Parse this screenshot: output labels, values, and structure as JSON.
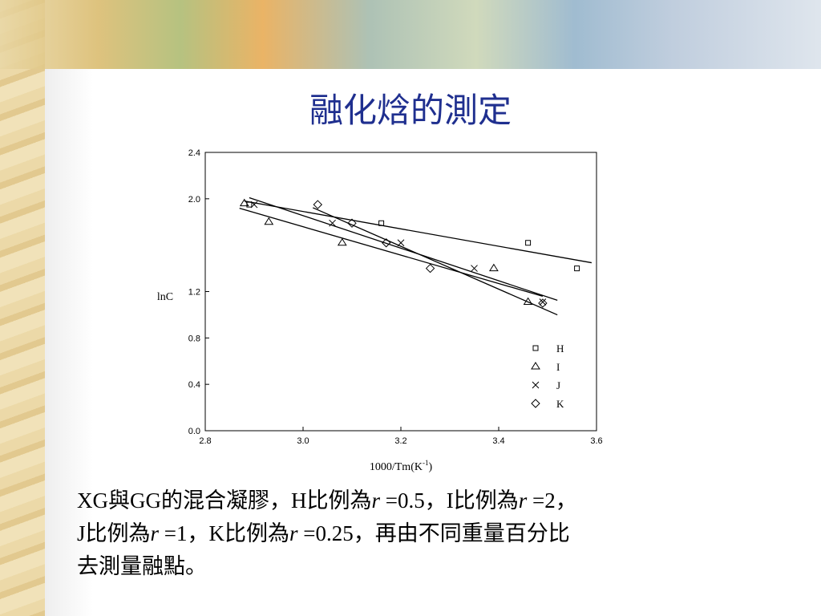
{
  "title": "融化焓的測定",
  "chart_data": {
    "type": "scatter",
    "y_label": "lnC",
    "x_label": {
      "main": "1000/Tm(K",
      "sup": "-1",
      "end": ")"
    },
    "xlim": [
      2.8,
      3.6
    ],
    "xticks": [
      2.8,
      {
        "value": 3,
        "label": "3.0"
      },
      3.2,
      3.4,
      3.6
    ],
    "ylim": [
      0,
      2.4
    ],
    "yticks": [
      {
        "value": 0,
        "label": "0.0"
      },
      0.4,
      0.8,
      1.2,
      {
        "value": 2,
        "label": "2.0"
      },
      2.4
    ],
    "fit_lines": true,
    "legend": "lower right",
    "series": [
      {
        "name": "H",
        "marker": "square",
        "color": "#000000",
        "x": [
          2.89,
          3.16,
          3.46,
          3.56
        ],
        "values": [
          1.95,
          1.79,
          1.62,
          1.4
        ]
      },
      {
        "name": "I",
        "marker": "triangle",
        "color": "#000000",
        "x": [
          2.88,
          2.93,
          3.08,
          3.39,
          3.46
        ],
        "values": [
          1.96,
          1.8,
          1.62,
          1.4,
          1.11
        ]
      },
      {
        "name": "J",
        "marker": "cross",
        "color": "#000000",
        "x": [
          2.9,
          3.06,
          3.2,
          3.35,
          3.49
        ],
        "values": [
          1.95,
          1.79,
          1.62,
          1.4,
          1.11
        ]
      },
      {
        "name": "K",
        "marker": "diamond",
        "color": "#000000",
        "x": [
          3.03,
          3.1,
          3.17,
          3.26,
          3.49
        ],
        "values": [
          1.95,
          1.79,
          1.62,
          1.4,
          1.1
        ]
      }
    ]
  },
  "body": {
    "lines": [
      [
        {
          "text": "XG與GG的混合凝膠，H比例為"
        },
        {
          "text": "r",
          "italic": true
        },
        {
          "text": " =0.5，I比例為"
        },
        {
          "text": "r",
          "italic": true
        },
        {
          "text": " =2，"
        }
      ],
      [
        {
          "text": "J比例為"
        },
        {
          "text": "r",
          "italic": true
        },
        {
          "text": " =1，K比例為"
        },
        {
          "text": "r",
          "italic": true
        },
        {
          "text": " =0.25，再由不同重量百分比"
        }
      ],
      [
        {
          "text": "去測量融點。"
        }
      ]
    ]
  }
}
